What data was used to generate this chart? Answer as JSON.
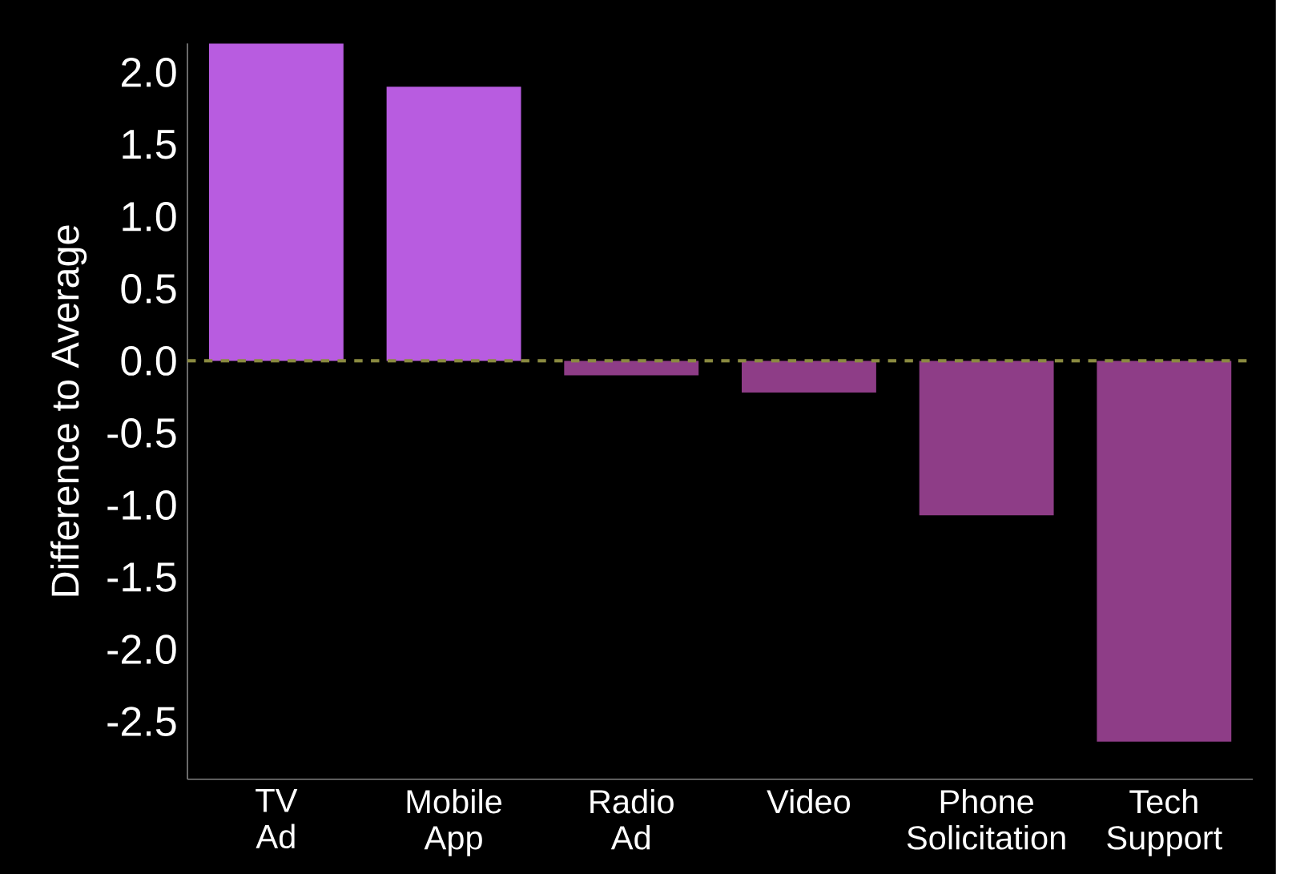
{
  "chart_data": {
    "type": "bar",
    "ylabel": "Difference to Average",
    "categories": [
      "TV\nAd",
      "Mobile\nApp",
      "Radio\nAd",
      "Video",
      "Phone\nSolicitation",
      "Tech\nSupport"
    ],
    "values": [
      2.2,
      1.9,
      -0.1,
      -0.22,
      -1.07,
      -2.64
    ],
    "colors": [
      "#b85ce0",
      "#b85ce0",
      "#8e3d87",
      "#8e3d87",
      "#8e3d87",
      "#8e3d87"
    ],
    "ylim": [
      -2.9,
      2.2
    ],
    "yticks": [
      -2.5,
      {
        "value": -2,
        "label": "-2.0"
      },
      -1.5,
      {
        "value": -1,
        "label": "-1.0"
      },
      -0.5,
      {
        "value": 0,
        "label": "0.0"
      },
      0.5,
      {
        "value": 1,
        "label": "1.0"
      },
      1.5,
      {
        "value": 2,
        "label": "2.0"
      }
    ],
    "ref_lines": [
      {
        "axis": "y",
        "value": 0,
        "color": "#8a8a40",
        "line_style": "dashed"
      }
    ]
  }
}
